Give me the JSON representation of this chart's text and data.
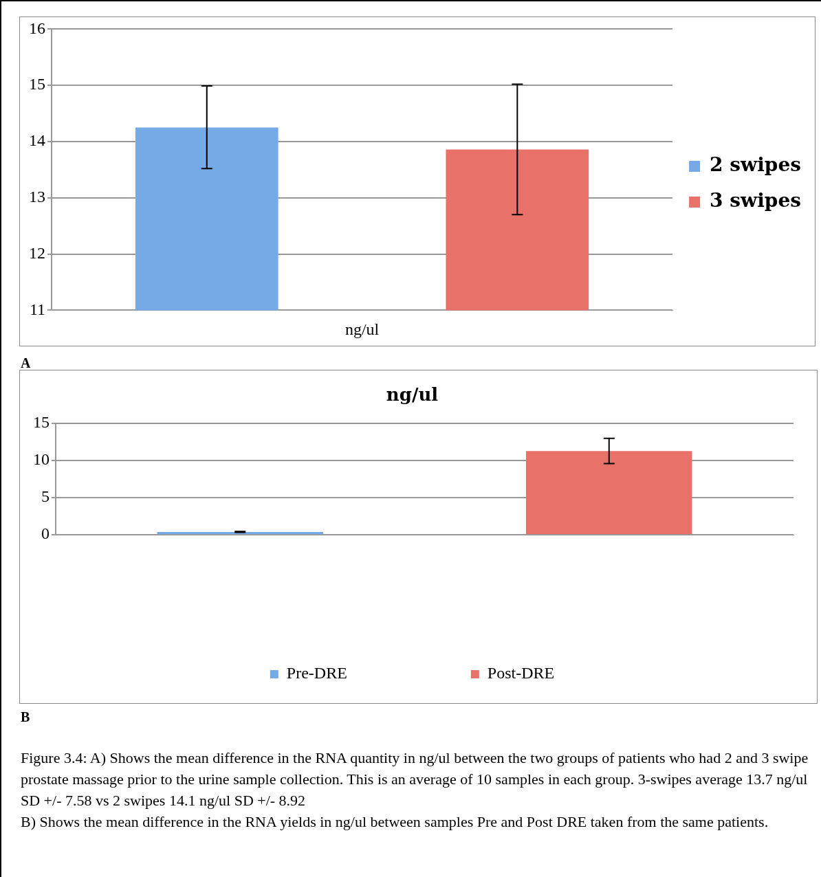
{
  "chart_data": [
    {
      "type": "bar",
      "xlabel": "ng/ul",
      "categories": [
        null
      ],
      "series": [
        {
          "name": "2 swipes",
          "color": "#76aae6",
          "values": [
            14.25
          ],
          "errors": [
            [
              13.52,
              14.99
            ]
          ]
        },
        {
          "name": "3 swipes",
          "color": "#e8716a",
          "values": [
            13.86
          ],
          "errors": [
            [
              12.7,
              15.02
            ]
          ]
        }
      ],
      "ylim": [
        11,
        16
      ],
      "yticks": [
        11,
        12,
        13,
        14,
        15,
        16
      ],
      "grid": "y",
      "legend": "right",
      "annotations": [
        "A"
      ]
    },
    {
      "type": "bar",
      "title": "ng/ul",
      "categories": [
        null
      ],
      "series": [
        {
          "name": "Pre-DRE",
          "color": "#76aae6",
          "values": [
            0.4
          ],
          "errors": [
            [
              0.35,
              0.45
            ]
          ]
        },
        {
          "name": "Post-DRE",
          "color": "#e8716a",
          "values": [
            11.3
          ],
          "errors": [
            [
              9.6,
              13
            ]
          ]
        }
      ],
      "ylim": [
        0,
        15
      ],
      "yticks": [
        0,
        5,
        10,
        15
      ],
      "grid": "y",
      "legend": "bottom",
      "annotations": [
        "B",
        "Figure 3.4: A) Shows the mean difference in the RNA quantity in ng/ul between the two groups of patients who had 2 and 3 swipe prostate massage prior to the urine sample collection. This is an average of 10 samples in each group.  3-swipes average 13.7 ng/ul SD +/- 7.58 vs 2 swipes 14.1 ng/ul SD +/- 8.92",
        "B) Shows the mean difference in the RNA yields in ng/ul between samples Pre and Post DRE taken from the same patients."
      ]
    }
  ]
}
